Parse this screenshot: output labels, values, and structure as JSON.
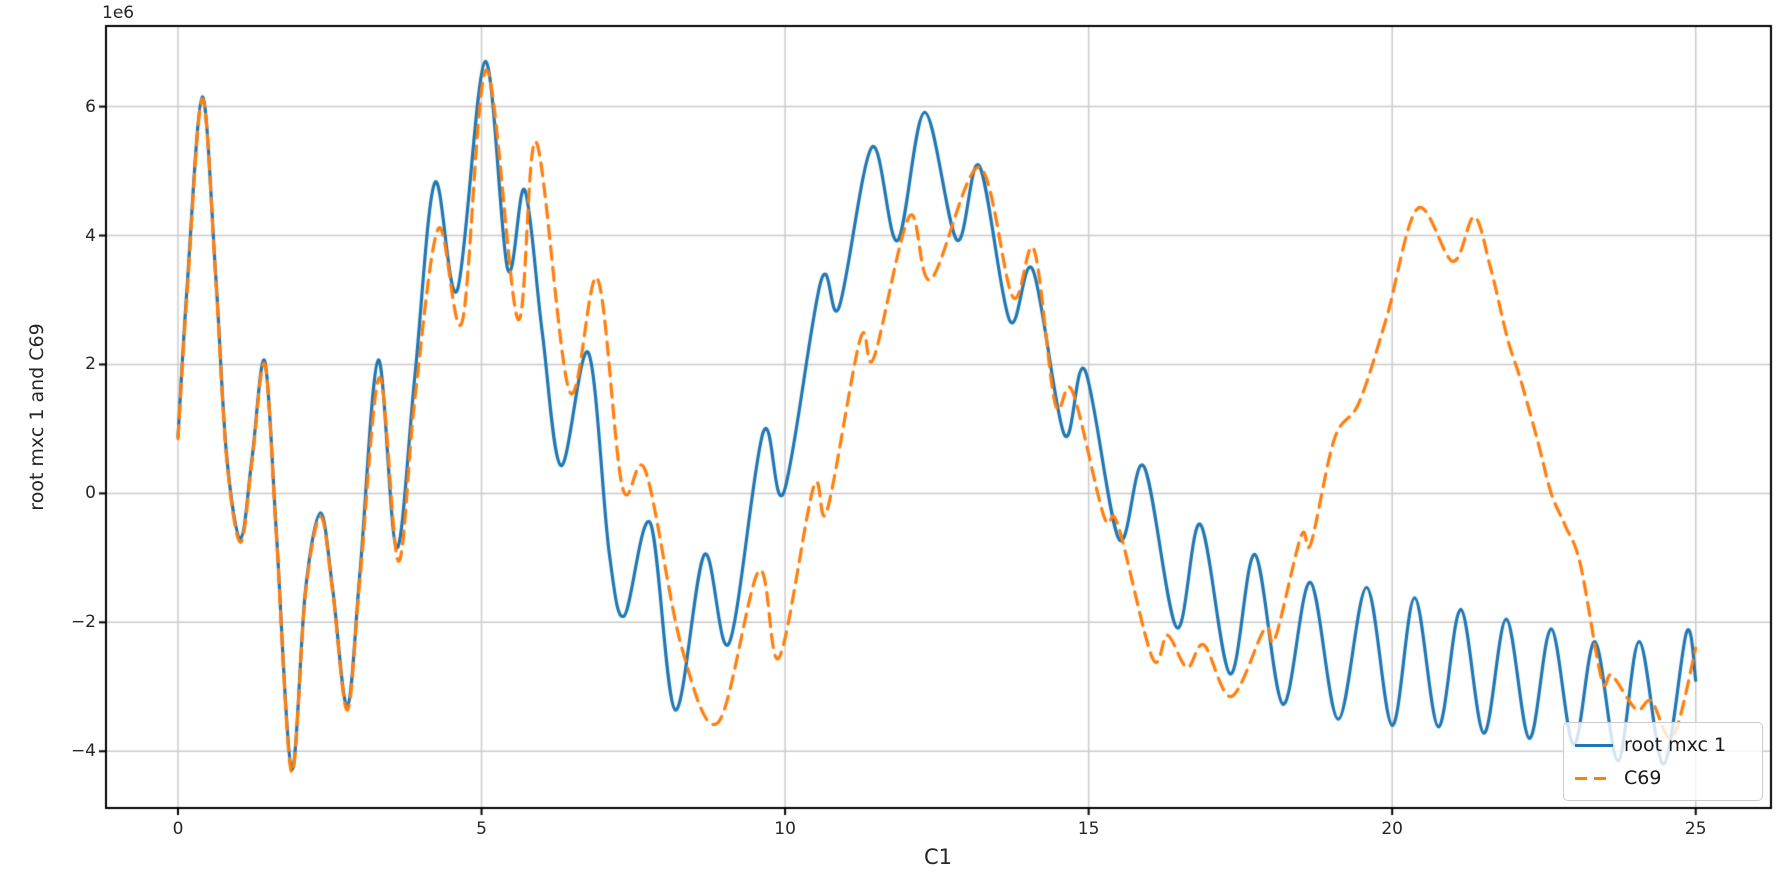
{
  "chart_data": {
    "type": "line",
    "title": "",
    "xlabel": "C1",
    "ylabel": "root mxc 1 and C69",
    "offset_text": "1e6",
    "grid": true,
    "legend_position": "lower right",
    "x_ticks": [
      0,
      5,
      10,
      15,
      20,
      25
    ],
    "x_tick_labels": [
      "0",
      "5",
      "10",
      "15",
      "20",
      "25"
    ],
    "y_ticks": [
      6,
      4,
      2,
      0,
      -2,
      -4
    ],
    "y_tick_labels": [
      "6",
      "4",
      "2",
      "0",
      "−2",
      "−4"
    ],
    "xlim": [
      -1.186,
      26.24
    ],
    "ylim": [
      -4.88,
      7.25
    ],
    "y_unit_multiplier": 1000000,
    "series": [
      {
        "name": "root mxc 1",
        "color": "#1f77b4",
        "style": "solid",
        "line_width": 3.2,
        "points": [
          [
            0.0,
            0.88
          ],
          [
            0.15,
            3.2
          ],
          [
            0.4,
            6.15
          ],
          [
            0.62,
            3.4
          ],
          [
            0.8,
            0.6
          ],
          [
            1.03,
            -0.7
          ],
          [
            1.22,
            0.55
          ],
          [
            1.43,
            2.05
          ],
          [
            1.62,
            -0.6
          ],
          [
            1.87,
            -4.28
          ],
          [
            2.1,
            -1.5
          ],
          [
            2.35,
            -0.3
          ],
          [
            2.55,
            -1.5
          ],
          [
            2.79,
            -3.3
          ],
          [
            3.0,
            -1.2
          ],
          [
            3.3,
            2.07
          ],
          [
            3.6,
            -0.85
          ],
          [
            3.9,
            1.8
          ],
          [
            4.23,
            4.82
          ],
          [
            4.6,
            3.15
          ],
          [
            5.06,
            6.7
          ],
          [
            5.43,
            3.48
          ],
          [
            5.71,
            4.71
          ],
          [
            6.0,
            2.5
          ],
          [
            6.31,
            0.43
          ],
          [
            6.76,
            2.18
          ],
          [
            7.1,
            -0.9
          ],
          [
            7.35,
            -1.9
          ],
          [
            7.78,
            -0.46
          ],
          [
            8.19,
            -3.36
          ],
          [
            8.67,
            -0.95
          ],
          [
            9.08,
            -2.32
          ],
          [
            9.64,
            0.95
          ],
          [
            9.98,
            0.02
          ],
          [
            10.59,
            3.29
          ],
          [
            10.89,
            2.89
          ],
          [
            11.43,
            5.37
          ],
          [
            11.85,
            3.92
          ],
          [
            12.3,
            5.91
          ],
          [
            12.83,
            3.93
          ],
          [
            13.2,
            5.08
          ],
          [
            13.7,
            2.68
          ],
          [
            14.08,
            3.47
          ],
          [
            14.6,
            0.91
          ],
          [
            14.94,
            1.91
          ],
          [
            15.5,
            -0.71
          ],
          [
            15.91,
            0.42
          ],
          [
            16.45,
            -2.08
          ],
          [
            16.84,
            -0.48
          ],
          [
            17.33,
            -2.8
          ],
          [
            17.74,
            -0.95
          ],
          [
            18.2,
            -3.27
          ],
          [
            18.65,
            -1.38
          ],
          [
            19.11,
            -3.5
          ],
          [
            19.58,
            -1.46
          ],
          [
            20.0,
            -3.6
          ],
          [
            20.37,
            -1.62
          ],
          [
            20.76,
            -3.62
          ],
          [
            21.13,
            -1.8
          ],
          [
            21.51,
            -3.72
          ],
          [
            21.88,
            -1.95
          ],
          [
            22.26,
            -3.8
          ],
          [
            22.62,
            -2.1
          ],
          [
            22.99,
            -3.9
          ],
          [
            23.34,
            -2.3
          ],
          [
            23.72,
            -4.15
          ],
          [
            24.07,
            -2.3
          ],
          [
            24.47,
            -4.2
          ],
          [
            24.85,
            -2.15
          ],
          [
            25.0,
            -2.9
          ]
        ]
      },
      {
        "name": "C69",
        "color": "#ff7f0e",
        "style": "dashed",
        "line_width": 3.2,
        "dash_pattern": [
          13,
          8
        ],
        "points": [
          [
            0.0,
            0.85
          ],
          [
            0.15,
            3.1
          ],
          [
            0.4,
            6.12
          ],
          [
            0.62,
            3.35
          ],
          [
            0.8,
            0.55
          ],
          [
            1.03,
            -0.76
          ],
          [
            1.22,
            0.5
          ],
          [
            1.43,
            2.0
          ],
          [
            1.62,
            -0.65
          ],
          [
            1.87,
            -4.32
          ],
          [
            2.1,
            -1.55
          ],
          [
            2.35,
            -0.36
          ],
          [
            2.55,
            -1.55
          ],
          [
            2.79,
            -3.36
          ],
          [
            3.0,
            -1.3
          ],
          [
            3.32,
            1.8
          ],
          [
            3.63,
            -1.05
          ],
          [
            3.9,
            1.45
          ],
          [
            4.29,
            4.11
          ],
          [
            4.68,
            2.66
          ],
          [
            5.08,
            6.57
          ],
          [
            5.6,
            2.7
          ],
          [
            5.9,
            5.45
          ],
          [
            6.45,
            1.58
          ],
          [
            6.91,
            3.33
          ],
          [
            7.32,
            0.1
          ],
          [
            7.7,
            0.35
          ],
          [
            8.3,
            -2.4
          ],
          [
            8.9,
            -3.55
          ],
          [
            9.57,
            -1.2
          ],
          [
            9.9,
            -2.55
          ],
          [
            10.47,
            0.1
          ],
          [
            10.69,
            -0.27
          ],
          [
            11.24,
            2.4
          ],
          [
            11.46,
            2.1
          ],
          [
            12.05,
            4.3
          ],
          [
            12.4,
            3.32
          ],
          [
            13.2,
            5.06
          ],
          [
            13.75,
            3.05
          ],
          [
            14.1,
            3.78
          ],
          [
            14.45,
            1.39
          ],
          [
            14.73,
            1.59
          ],
          [
            15.25,
            -0.35
          ],
          [
            15.48,
            -0.48
          ],
          [
            16.05,
            -2.55
          ],
          [
            16.3,
            -2.2
          ],
          [
            16.62,
            -2.7
          ],
          [
            16.9,
            -2.35
          ],
          [
            17.35,
            -3.15
          ],
          [
            17.9,
            -2.1
          ],
          [
            18.07,
            -2.25
          ],
          [
            18.5,
            -0.66
          ],
          [
            18.66,
            -0.78
          ],
          [
            19.05,
            0.85
          ],
          [
            19.45,
            1.4
          ],
          [
            19.9,
            2.7
          ],
          [
            20.42,
            4.42
          ],
          [
            21.0,
            3.6
          ],
          [
            21.35,
            4.29
          ],
          [
            21.62,
            3.5
          ],
          [
            21.9,
            2.4
          ],
          [
            22.12,
            1.75
          ],
          [
            22.4,
            0.8
          ],
          [
            22.62,
            0.0
          ],
          [
            22.85,
            -0.5
          ],
          [
            23.1,
            -1.1
          ],
          [
            23.45,
            -2.88
          ],
          [
            23.62,
            -2.82
          ],
          [
            24.02,
            -3.35
          ],
          [
            24.27,
            -3.22
          ],
          [
            24.62,
            -3.78
          ],
          [
            25.0,
            -2.4
          ]
        ]
      }
    ],
    "style": {
      "grid_color": "#cccccc",
      "spine_color": "#000000",
      "background": "#ffffff",
      "accent_blue": "#1f77b4",
      "accent_orange": "#ff7f0e"
    }
  }
}
